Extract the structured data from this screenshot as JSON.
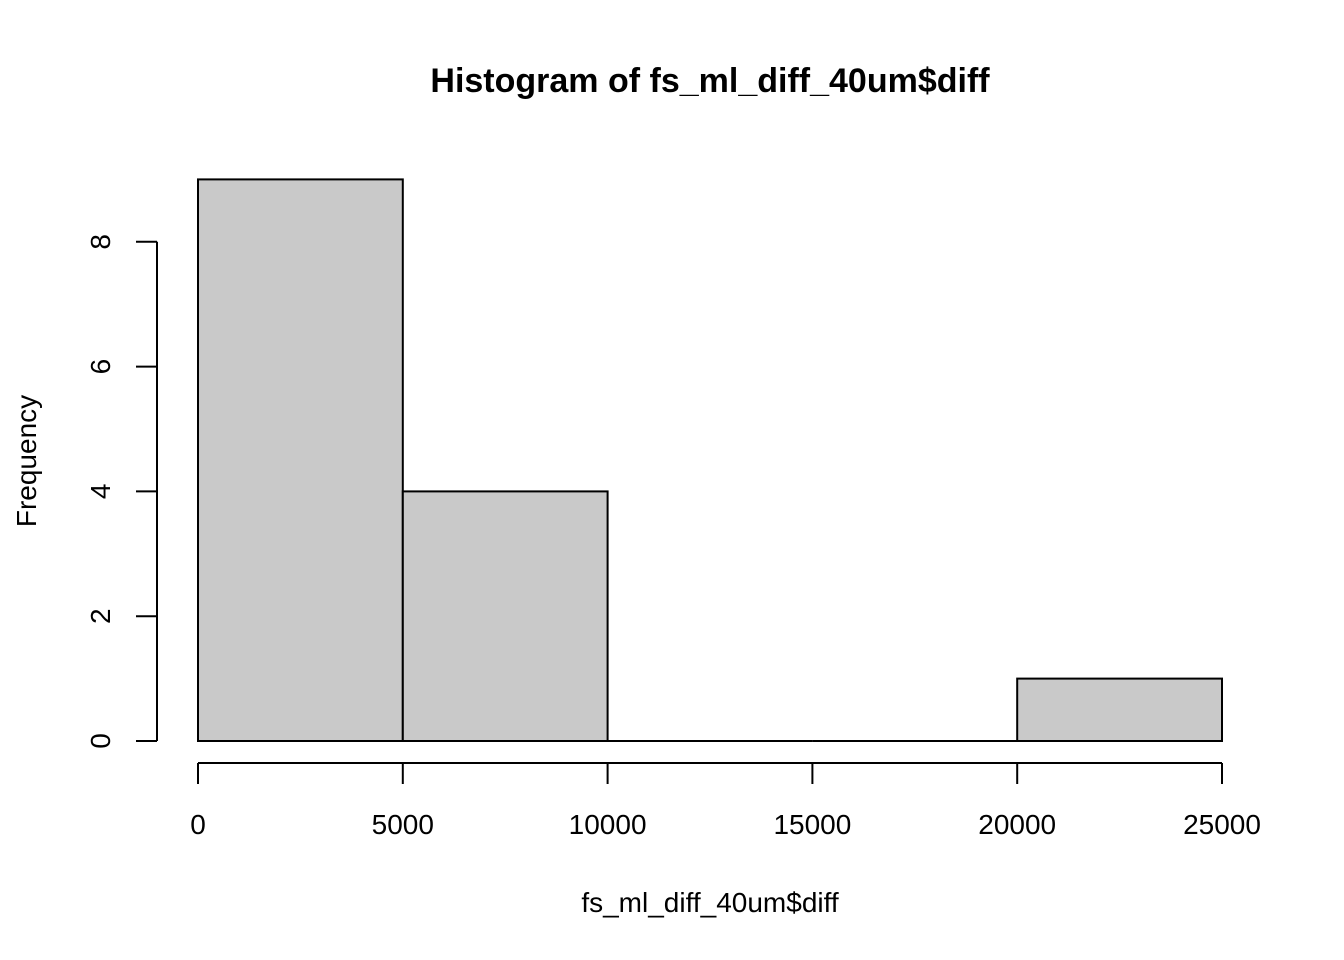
{
  "chart_data": {
    "type": "bar",
    "subtype": "histogram",
    "title": "Histogram of fs_ml_diff_40um$diff",
    "xlabel": "fs_ml_diff_40um$diff",
    "ylabel": "Frequency",
    "bins": [
      {
        "start": 0,
        "end": 5000,
        "count": 9
      },
      {
        "start": 5000,
        "end": 10000,
        "count": 4
      },
      {
        "start": 10000,
        "end": 15000,
        "count": 0
      },
      {
        "start": 15000,
        "end": 20000,
        "count": 0
      },
      {
        "start": 20000,
        "end": 25000,
        "count": 1
      }
    ],
    "xlim": [
      0,
      25000
    ],
    "ylim": [
      0,
      9
    ],
    "x_ticks": [
      0,
      5000,
      10000,
      15000,
      20000,
      25000
    ],
    "y_ticks": [
      0,
      2,
      4,
      6,
      8
    ],
    "grid": false,
    "colors": {
      "bar_fill": "#c9c9c9",
      "bar_stroke": "#000000"
    }
  }
}
